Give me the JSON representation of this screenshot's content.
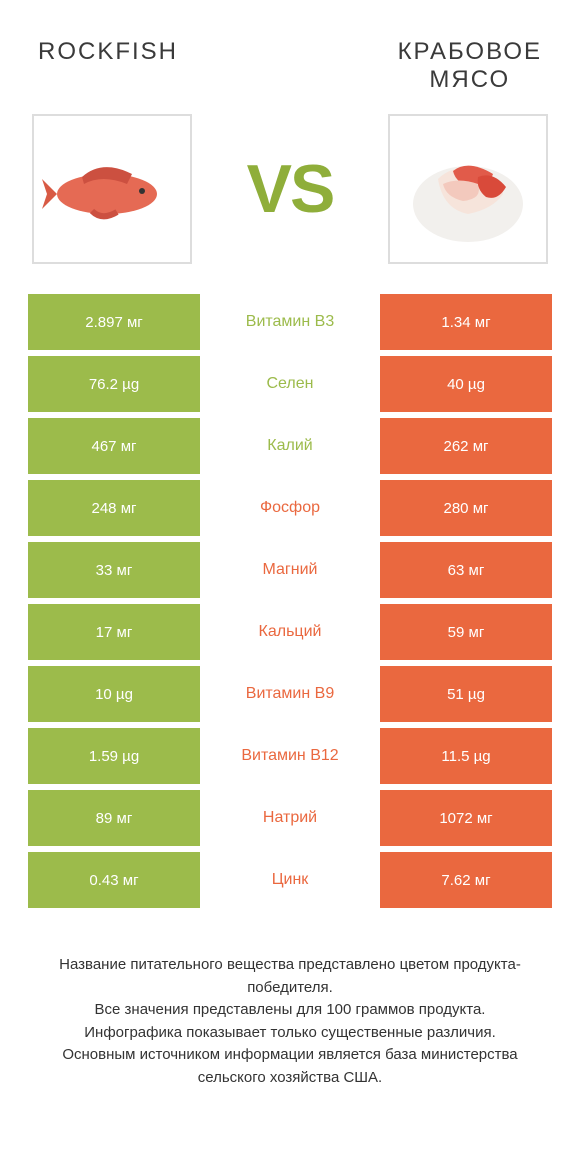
{
  "colors": {
    "green": "#9cbb4b",
    "orange": "#ea683f",
    "vs": "#8fae3a",
    "title": "#3a3a3a"
  },
  "header": {
    "left_title": "ROCKFISH",
    "right_title_line1": "КРАБОВОЕ",
    "right_title_line2": "МЯСО",
    "vs": "VS"
  },
  "rows": [
    {
      "left": "2.897 мг",
      "mid": "Витамин B3",
      "right": "1.34 мг",
      "winner": "left"
    },
    {
      "left": "76.2 µg",
      "mid": "Селен",
      "right": "40 µg",
      "winner": "left"
    },
    {
      "left": "467 мг",
      "mid": "Калий",
      "right": "262 мг",
      "winner": "left"
    },
    {
      "left": "248 мг",
      "mid": "Фосфор",
      "right": "280 мг",
      "winner": "right"
    },
    {
      "left": "33 мг",
      "mid": "Магний",
      "right": "63 мг",
      "winner": "right"
    },
    {
      "left": "17 мг",
      "mid": "Кальций",
      "right": "59 мг",
      "winner": "right"
    },
    {
      "left": "10 µg",
      "mid": "Витамин B9",
      "right": "51 µg",
      "winner": "right"
    },
    {
      "left": "1.59 µg",
      "mid": "Витамин B12",
      "right": "11.5 µg",
      "winner": "right"
    },
    {
      "left": "89 мг",
      "mid": "Натрий",
      "right": "1072 мг",
      "winner": "right"
    },
    {
      "left": "0.43 мг",
      "mid": "Цинк",
      "right": "7.62 мг",
      "winner": "right"
    }
  ],
  "footer": {
    "line1": "Название питательного вещества представлено цветом продукта-победителя.",
    "line2": "Все значения представлены для 100 граммов продукта.",
    "line3": "Инфографика показывает только существенные различия.",
    "line4": "Основным источником информации является база министерства сельского хозяйства США."
  }
}
